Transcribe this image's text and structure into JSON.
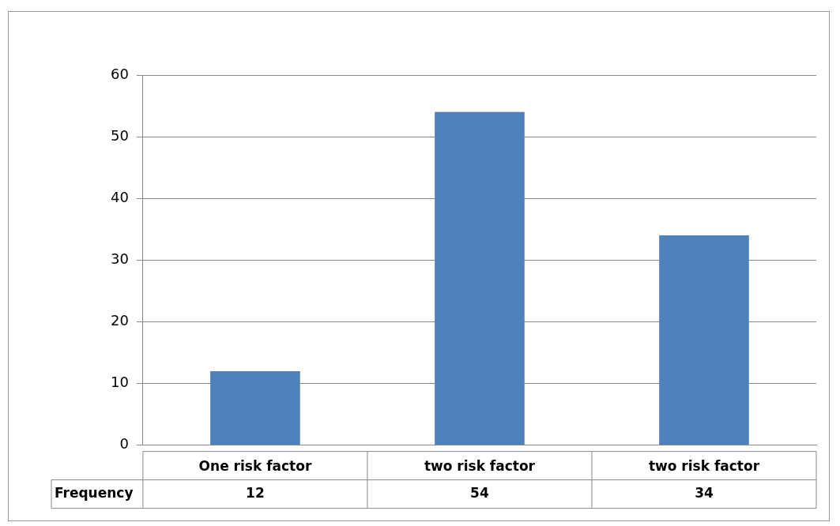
{
  "chart_data": {
    "type": "bar",
    "categories": [
      "One risk factor",
      "two risk factor",
      "two risk factor"
    ],
    "series": [
      {
        "name": "Frequency",
        "color": "#4f81bd",
        "values": [
          12,
          54,
          34
        ]
      }
    ],
    "ylim": [
      0,
      60
    ],
    "yticks": [
      0,
      10,
      20,
      30,
      40,
      50,
      60
    ],
    "grid": "y",
    "legend": false,
    "data_labels": true
  }
}
